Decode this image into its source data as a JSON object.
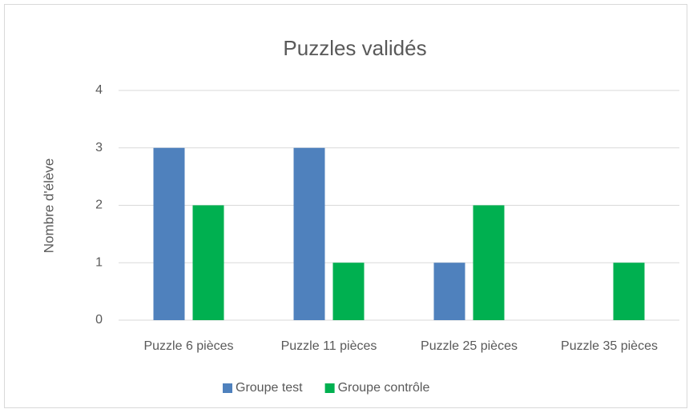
{
  "chart_data": {
    "type": "bar",
    "title": "Puzzles validés",
    "ylabel": "Nombre d'élève",
    "categories": [
      "Puzzle 6 pièces",
      "Puzzle 11 pièces",
      "Puzzle 25 pièces",
      "Puzzle 35 pièces"
    ],
    "series": [
      {
        "name": "Groupe test",
        "color": "#4f81bd",
        "values": [
          3,
          3,
          1,
          0
        ]
      },
      {
        "name": "Groupe contrôle",
        "color": "#00b050",
        "values": [
          2,
          1,
          2,
          1
        ]
      }
    ],
    "ylim": [
      0,
      4
    ],
    "yticks": [
      0,
      1,
      2,
      3,
      4
    ],
    "grid": true,
    "legend": "bottom"
  }
}
